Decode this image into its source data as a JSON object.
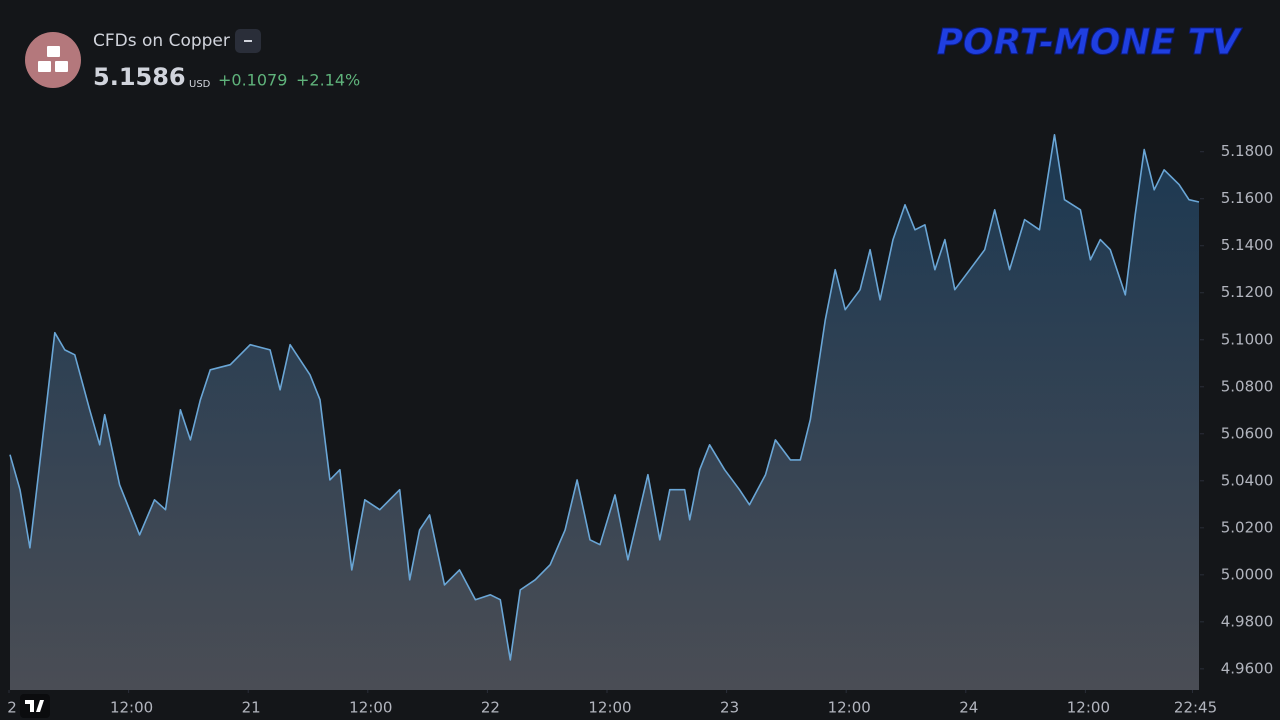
{
  "chart_data": {
    "type": "area",
    "title": "CFDs on Copper",
    "price": "5.1586",
    "currency": "USD",
    "change": "+0.1079",
    "change_percent": "+2.14%",
    "brand": "PORT-MONE TV",
    "color": "#6aa6d6",
    "x": [
      0.1,
      1.1,
      2.1,
      3.3,
      4.6,
      5.6,
      6.6,
      8.1,
      9.1,
      9.6,
      11.1,
      13.1,
      14.6,
      15.7,
      17.2,
      18.2,
      19.2,
      20.2,
      22.2,
      24.2,
      26.2,
      27.2,
      28.2,
      30.2,
      31.2,
      32.2,
      33.2,
      34.4,
      35.7,
      37.2,
      39.2,
      40.2,
      41.2,
      42.2,
      43.7,
      45.2,
      46.8,
      48.3,
      49.3,
      50.3,
      51.3,
      52.8,
      54.3,
      55.8,
      57.0,
      58.3,
      59.3,
      60.8,
      62.1,
      64.1,
      65.3,
      66.3,
      67.8,
      68.3,
      69.3,
      70.3,
      71.8,
      73.3,
      74.3,
      75.9,
      76.9,
      78.4,
      79.4,
      80.4,
      81.9,
      82.9,
      83.9,
      85.4,
      86.4,
      87.4,
      88.7,
      89.9,
      90.9,
      91.9,
      92.9,
      93.9,
      94.9,
      96.4,
      97.9,
      98.9,
      100.4,
      101.9,
      103.4,
      104.9,
      105.9,
      107.5,
      108.5,
      109.5,
      110.5,
      112.0,
      113.0,
      113.9,
      114.9,
      115.9,
      117.4,
      118.4,
      119.4
    ],
    "values": [
      5.0511,
      5.0362,
      5.0115,
      5.0553,
      5.103,
      5.0957,
      5.0936,
      5.0702,
      5.0553,
      5.0681,
      5.0383,
      5.017,
      5.0319,
      5.0277,
      5.0702,
      5.0574,
      5.0745,
      5.0872,
      5.0894,
      5.0979,
      5.0957,
      5.0787,
      5.0979,
      5.0851,
      5.0745,
      5.0404,
      5.0447,
      5.0021,
      5.0319,
      5.0277,
      5.0362,
      4.9979,
      5.0191,
      5.0255,
      4.9957,
      5.0021,
      4.9894,
      4.9915,
      4.9894,
      4.9638,
      4.9936,
      4.9979,
      5.0043,
      5.0191,
      5.0404,
      5.0149,
      5.0128,
      5.034,
      5.0064,
      5.0426,
      5.0149,
      5.0362,
      5.0362,
      5.0234,
      5.0447,
      5.0553,
      5.0447,
      5.0362,
      5.0298,
      5.0426,
      5.0574,
      5.0489,
      5.0489,
      5.066,
      5.1085,
      5.1298,
      5.1128,
      5.1213,
      5.1383,
      5.117,
      5.1426,
      5.1574,
      5.1468,
      5.1489,
      5.1298,
      5.1426,
      5.1213,
      5.1298,
      5.1383,
      5.1553,
      5.1298,
      5.1511,
      5.1468,
      5.1872,
      5.1596,
      5.1553,
      5.134,
      5.1426,
      5.1383,
      5.1191,
      5.1532,
      5.1809,
      5.1638,
      5.1723,
      5.166,
      5.1596,
      5.1586
    ],
    "xlim": [
      0,
      119.5
    ],
    "xticks": [
      {
        "value": 0,
        "label": "2"
      },
      {
        "value": 12,
        "label": "12:00"
      },
      {
        "value": 24,
        "label": "21"
      },
      {
        "value": 36,
        "label": "12:00"
      },
      {
        "value": 48,
        "label": "22"
      },
      {
        "value": 60,
        "label": "12:00"
      },
      {
        "value": 72,
        "label": "23"
      },
      {
        "value": 84,
        "label": "12:00"
      },
      {
        "value": 96,
        "label": "24"
      },
      {
        "value": 108,
        "label": "12:00"
      },
      {
        "value": 118.75,
        "label": "22:45"
      }
    ],
    "ylim": [
      4.951,
      5.202
    ],
    "yticks": [
      {
        "value": 4.96,
        "label": "4.9600"
      },
      {
        "value": 4.98,
        "label": "4.9800"
      },
      {
        "value": 5.0,
        "label": "5.0000"
      },
      {
        "value": 5.02,
        "label": "5.0200"
      },
      {
        "value": 5.04,
        "label": "5.0400"
      },
      {
        "value": 5.06,
        "label": "5.0600"
      },
      {
        "value": 5.08,
        "label": "5.0800"
      },
      {
        "value": 5.1,
        "label": "5.1000"
      },
      {
        "value": 5.12,
        "label": "5.1200"
      },
      {
        "value": 5.14,
        "label": "5.1400"
      },
      {
        "value": 5.16,
        "label": "5.1600"
      },
      {
        "value": 5.18,
        "label": "5.1800"
      }
    ]
  }
}
